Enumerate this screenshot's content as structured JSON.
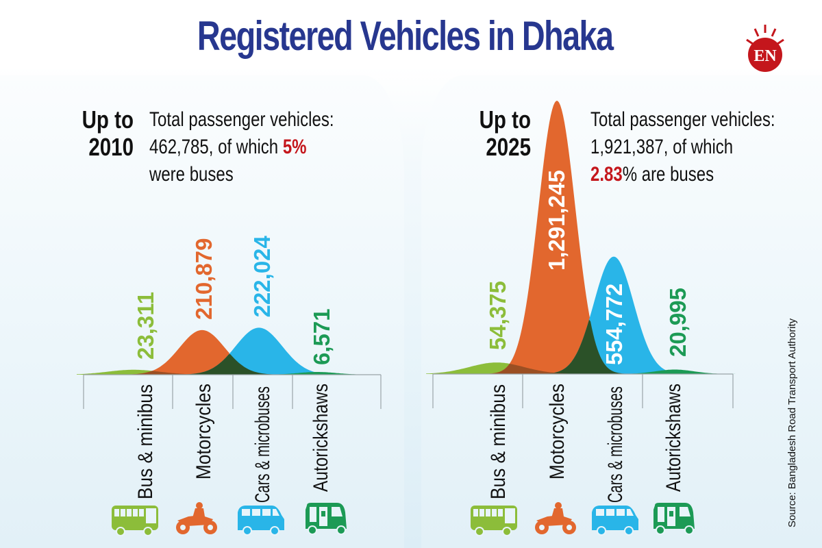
{
  "title": "Registered Vehicles in Dhaka",
  "logo": {
    "text": "EN",
    "color": "#c4161c"
  },
  "colors": {
    "title": "#27378f",
    "highlight": "#c4161c",
    "bus": "#8cbd3a",
    "motorcycle": "#e2672e",
    "car": "#29b5e8",
    "autorickshaw": "#1c9a55",
    "overlap": "#2b5128"
  },
  "panels": [
    {
      "period_line1": "Up to",
      "period_line2": "2010",
      "summary_line1": "Total passenger vehicles:",
      "summary_line2_pre": "462,785, of which ",
      "summary_highlight": "5",
      "summary_line2_post": "%",
      "summary_line3": "were buses"
    },
    {
      "period_line1": "Up to",
      "period_line2": "2025",
      "summary_line1": "Total passenger vehicles:",
      "summary_line2_pre": "1,921,387, of which",
      "summary_highlight": "2.83",
      "summary_line3_post": "% are buses"
    }
  ],
  "source": "Source: Bangladesh Road Transport Authority",
  "chart_data": [
    {
      "type": "area",
      "title": "Up to 2010",
      "categories": [
        "Bus & minibus",
        "Motorcycles",
        "Cars & microbuses",
        "Autorickshaws"
      ],
      "values": [
        23311,
        210879,
        222024,
        6571
      ],
      "labels": [
        "23,311",
        "210,879",
        "222,024",
        "6,571"
      ],
      "total": 462785,
      "bus_share_percent": 5
    },
    {
      "type": "area",
      "title": "Up to 2025",
      "categories": [
        "Bus & minibus",
        "Motorcycles",
        "Cars & microbuses",
        "Autorickshaws"
      ],
      "values": [
        54375,
        1291245,
        554772,
        20995
      ],
      "labels": [
        "54,375",
        "1,291,245",
        "554,772",
        "20,995"
      ],
      "total": 1921387,
      "bus_share_percent": 2.83
    }
  ]
}
